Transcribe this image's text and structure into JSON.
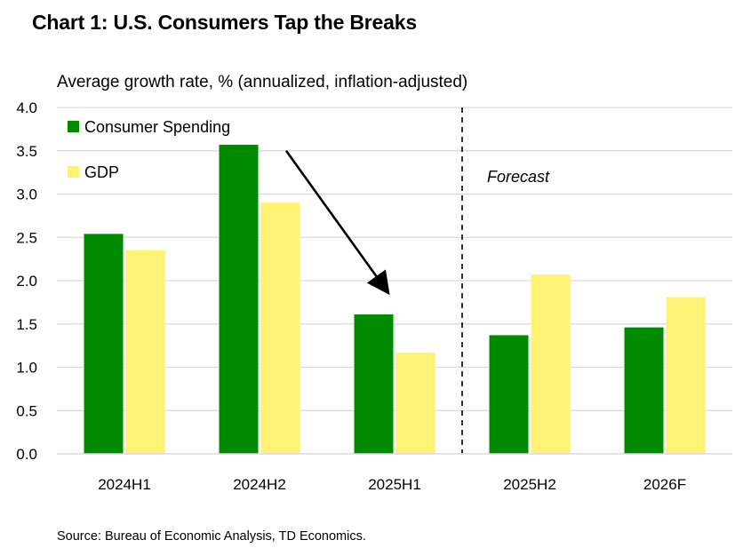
{
  "chart_data": {
    "type": "bar",
    "title": "Chart 1: U.S. Consumers Tap the Breaks",
    "ylabel": "Average growth rate, % (annualized, inflation-adjusted)",
    "xlabel": "",
    "categories": [
      "2024H1",
      "2024H2",
      "2025H1",
      "2025H2",
      "2026F"
    ],
    "series": [
      {
        "name": "Consumer Spending",
        "color": "#008a00",
        "values": [
          2.54,
          3.57,
          1.61,
          1.37,
          1.46
        ]
      },
      {
        "name": "GDP",
        "color": "#fff275",
        "values": [
          2.35,
          2.9,
          1.17,
          2.07,
          1.81
        ]
      }
    ],
    "ylim": [
      0,
      4.0
    ],
    "yticks": [
      "0.0",
      "0.5",
      "1.0",
      "1.5",
      "2.0",
      "2.5",
      "3.0",
      "3.5",
      "4.0"
    ],
    "grid": true,
    "legend_position": "top-left",
    "forecast_label": "Forecast",
    "forecast_starts_after": "2025H1",
    "arrow": {
      "from_category": "2024H2",
      "to_category": "2025H1"
    },
    "source": "Source: Bureau of Economic Analysis, TD Economics."
  }
}
